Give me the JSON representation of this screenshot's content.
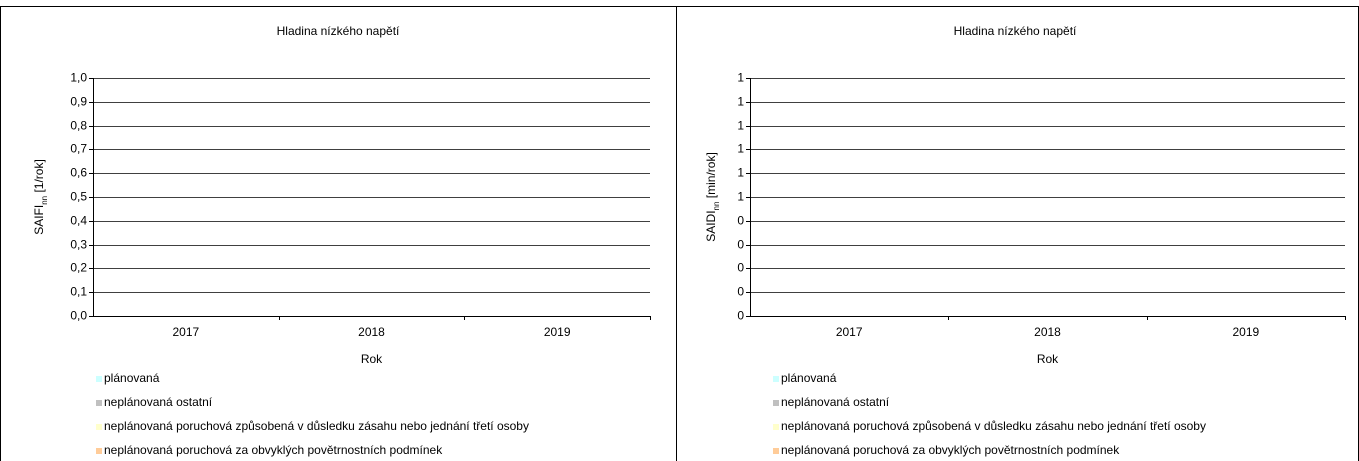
{
  "chart_data": [
    {
      "type": "bar",
      "stacked": true,
      "title": "Hladina nízkého napětí",
      "ylabel": {
        "main": "SAIFI",
        "sub": "nn",
        "unit": " [1/rok]"
      },
      "xlabel": "Rok",
      "categories": [
        "2017",
        "2018",
        "2019"
      ],
      "series": [
        {
          "name": "plánovaná",
          "color": "#ccffff",
          "values": [
            null,
            null,
            null
          ]
        },
        {
          "name": "neplánovaná ostatní",
          "color": "#c0c0c0",
          "values": [
            null,
            null,
            null
          ]
        },
        {
          "name": "neplánovaná poruchová způsobená v důsledku zásahu nebo jednání třetí osoby",
          "color": "#ffffcc",
          "values": [
            null,
            null,
            null
          ]
        },
        {
          "name": "neplánovaná poruchová za obvyklých povětrnostních podmínek",
          "color": "#ffcc99",
          "values": [
            null,
            null,
            null
          ]
        }
      ],
      "ylim": [
        0,
        1
      ],
      "yticks": [
        {
          "value": 0,
          "label": "0,0"
        },
        {
          "value": 0.1,
          "label": "0,1"
        },
        {
          "value": 0.2,
          "label": "0,2"
        },
        {
          "value": 0.3,
          "label": "0,3"
        },
        {
          "value": 0.4,
          "label": "0,4"
        },
        {
          "value": 0.5,
          "label": "0,5"
        },
        {
          "value": 0.6,
          "label": "0,6"
        },
        {
          "value": 0.7,
          "label": "0,7"
        },
        {
          "value": 0.8,
          "label": "0,8"
        },
        {
          "value": 0.9,
          "label": "0,9"
        },
        {
          "value": 1,
          "label": "1,0"
        }
      ],
      "grid": true,
      "legend": "bottom"
    },
    {
      "type": "bar",
      "stacked": true,
      "title": "Hladina nízkého napětí",
      "ylabel": {
        "main": "SAIDI",
        "sub": "nn",
        "unit": " [min/rok]"
      },
      "xlabel": "Rok",
      "categories": [
        "2017",
        "2018",
        "2019"
      ],
      "series": [
        {
          "name": "plánovaná",
          "color": "#ccffff",
          "values": [
            null,
            null,
            null
          ]
        },
        {
          "name": "neplánovaná ostatní",
          "color": "#c0c0c0",
          "values": [
            null,
            null,
            null
          ]
        },
        {
          "name": "neplánovaná poruchová způsobená v důsledku zásahu nebo jednání třetí osoby",
          "color": "#ffffcc",
          "values": [
            null,
            null,
            null
          ]
        },
        {
          "name": "neplánovaná poruchová za obvyklých povětrnostních podmínek",
          "color": "#ffcc99",
          "values": [
            null,
            null,
            null
          ]
        }
      ],
      "ylim": [
        0,
        1
      ],
      "yticks": [
        0,
        {
          "value": 0.1,
          "label": "0"
        },
        {
          "value": 0.2,
          "label": "0"
        },
        {
          "value": 0.3,
          "label": "0"
        },
        {
          "value": 0.4,
          "label": "0"
        },
        {
          "value": 0.5,
          "label": "1"
        },
        {
          "value": 0.6,
          "label": "1"
        },
        {
          "value": 0.7,
          "label": "1"
        },
        {
          "value": 0.8,
          "label": "1"
        },
        {
          "value": 0.9,
          "label": "1"
        },
        1
      ],
      "grid": true,
      "legend": "bottom"
    }
  ]
}
